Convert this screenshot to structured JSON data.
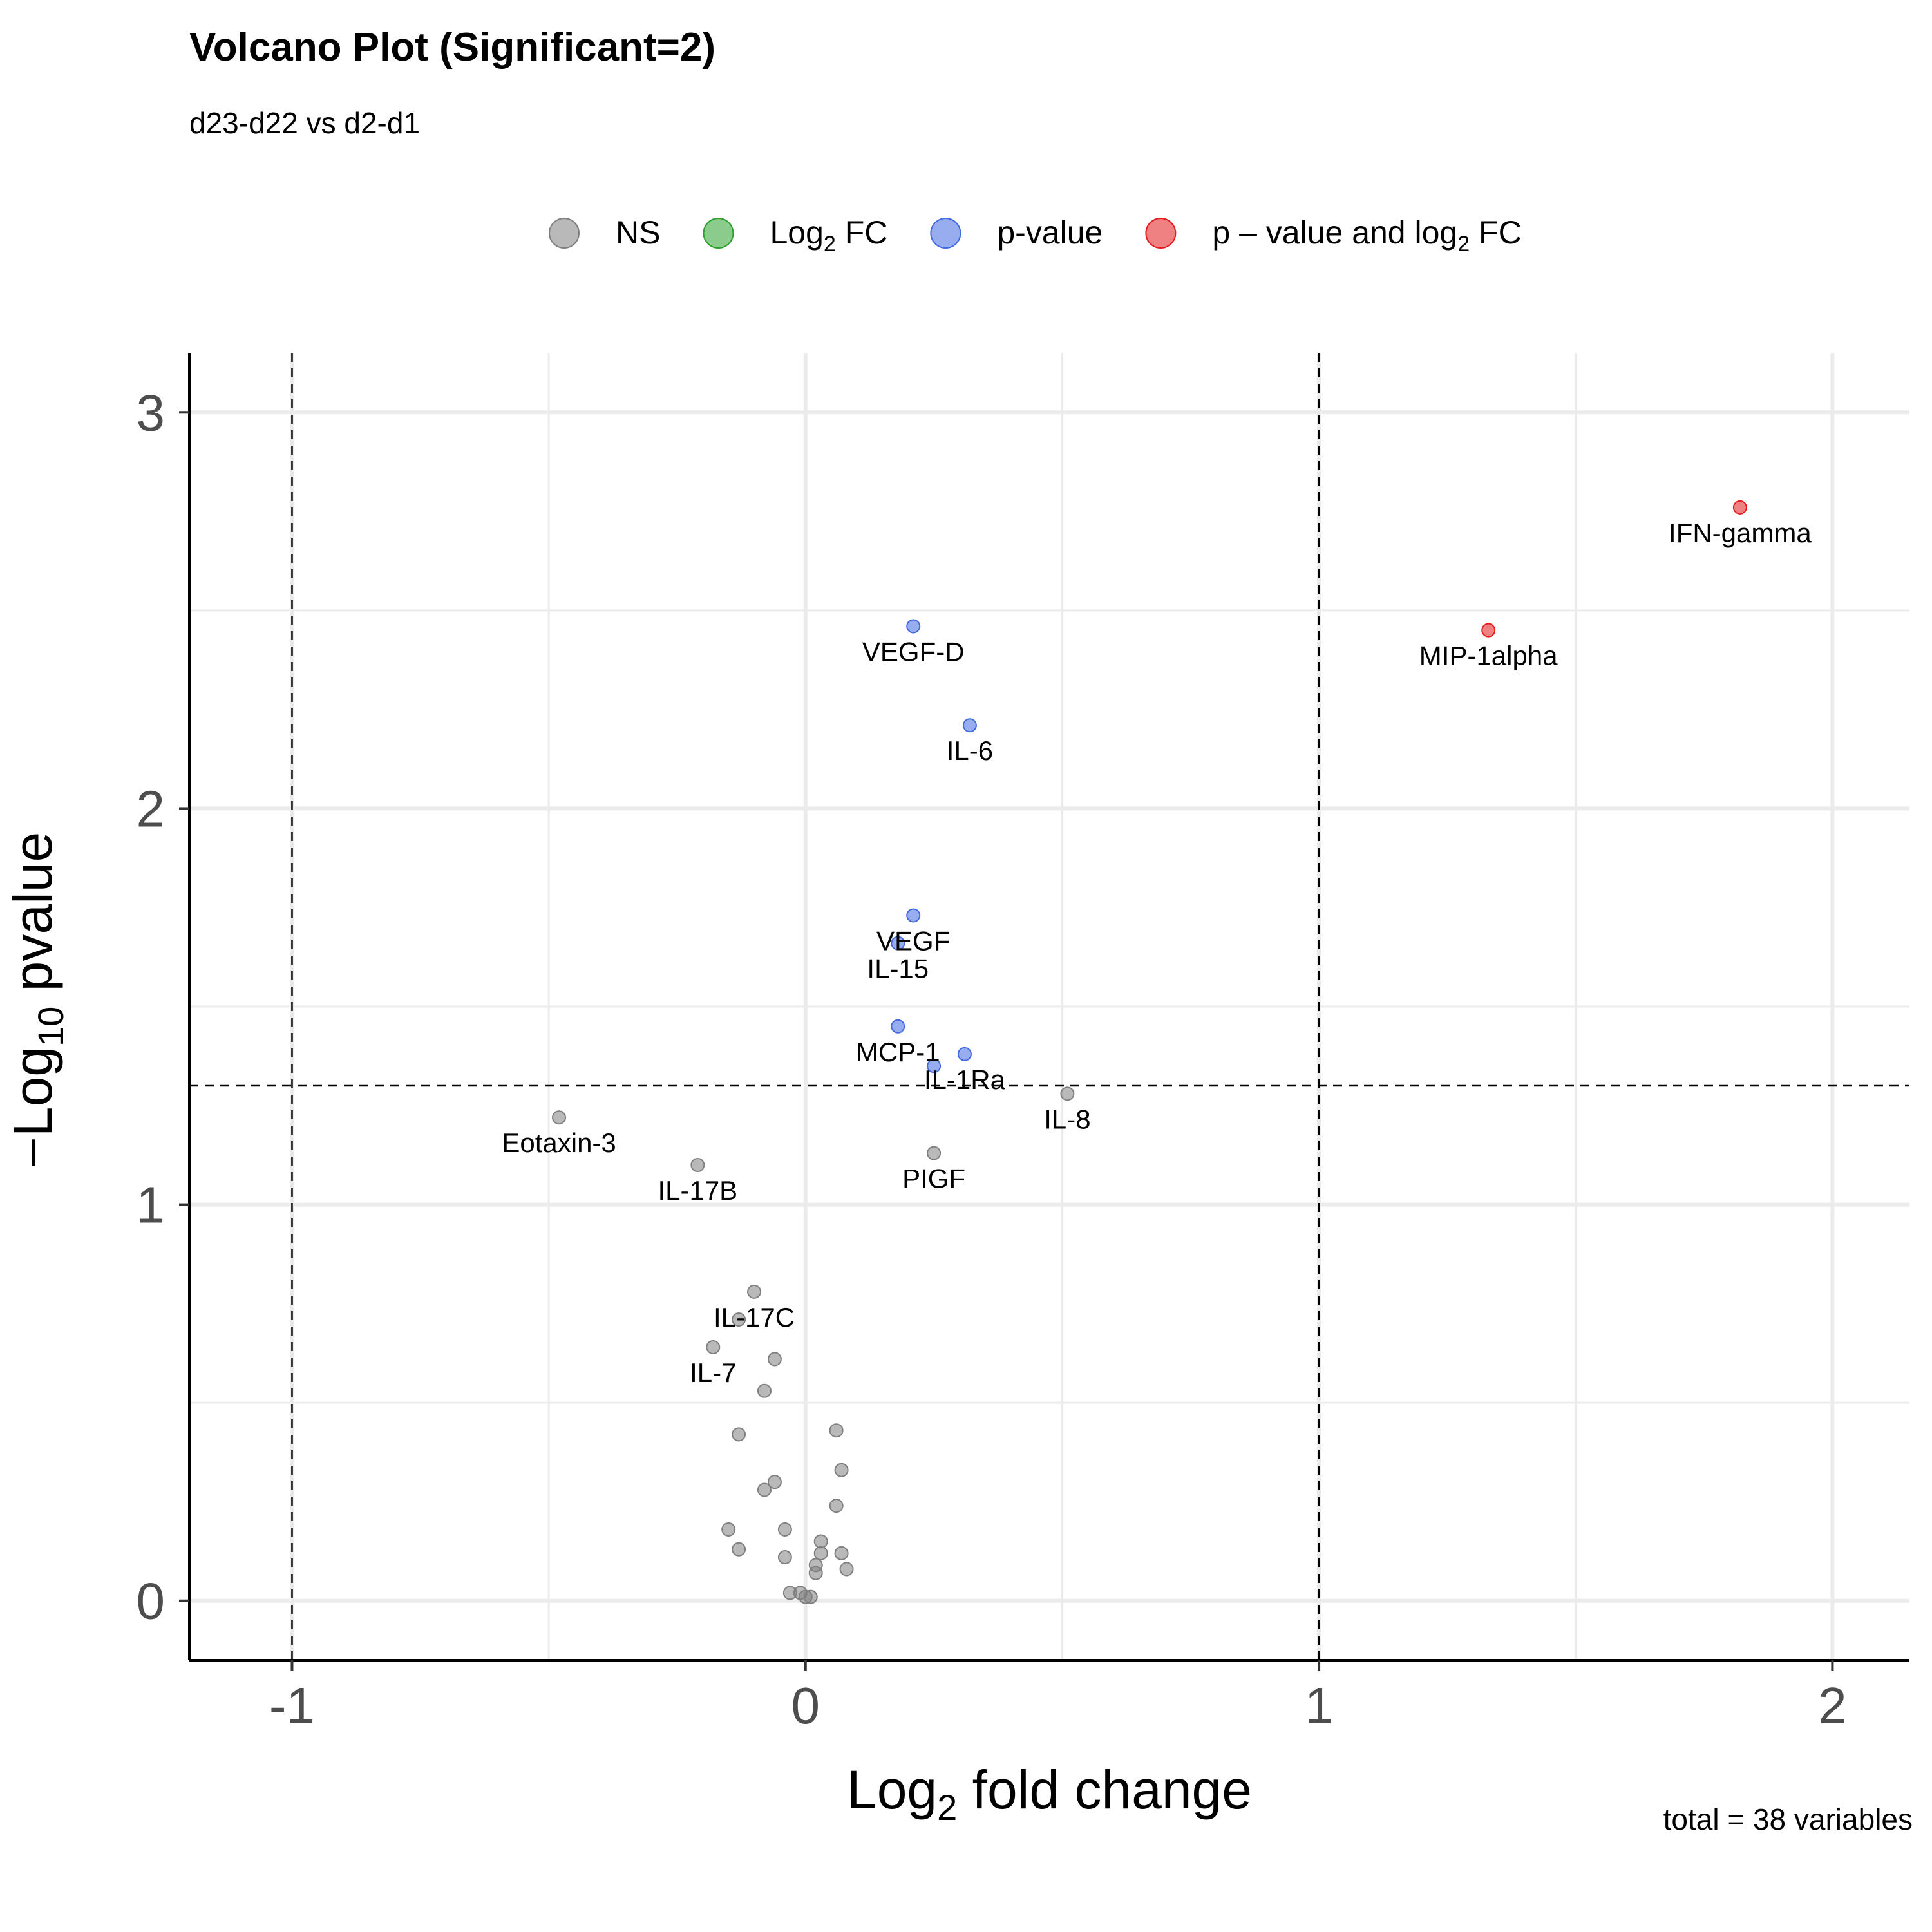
{
  "chart_data": {
    "type": "scatter",
    "title": "Volcano Plot (Significant=2)",
    "subtitle": "d23-d22 vs d2-d1",
    "caption": "total = 38 variables",
    "xlabel": {
      "main": "Log",
      "sub": "2",
      "rest": " fold change"
    },
    "ylabel": {
      "pre": "−Log",
      "sub": "10",
      "rest": " pvalue"
    },
    "xlim": [
      -1.2,
      2.15
    ],
    "ylim": [
      -0.15,
      3.15
    ],
    "x_ticks": [
      {
        "value": -1,
        "label": "-1"
      },
      {
        "value": 0,
        "label": "0"
      },
      {
        "value": 1,
        "label": "1"
      },
      {
        "value": 2,
        "label": "2"
      }
    ],
    "y_ticks": [
      {
        "value": 0,
        "label": "0"
      },
      {
        "value": 1,
        "label": "1"
      },
      {
        "value": 2,
        "label": "2"
      },
      {
        "value": 3,
        "label": "3"
      }
    ],
    "minor_x": [
      -0.5,
      0.5,
      1.5
    ],
    "minor_y": [
      0.5,
      1.5,
      2.5
    ],
    "grid": true,
    "cutoffs": {
      "x": [
        -1,
        1
      ],
      "y": 1.3
    },
    "legend": {
      "position": "top",
      "items": [
        {
          "key": "NS",
          "text": "NS",
          "color": "#7f7f7f"
        },
        {
          "key": "FC",
          "text": "Log",
          "sub": "2",
          "rest": " FC",
          "color": "#2ca02c"
        },
        {
          "key": "P",
          "text": "p-value",
          "color": "#4169e1"
        },
        {
          "key": "PFC",
          "text": "p – value and log",
          "sub": "2",
          "rest": " FC",
          "color": "#e41a1c"
        }
      ]
    },
    "points": [
      {
        "label": "IFN-gamma",
        "x": 1.82,
        "y": 2.76,
        "group": "PFC"
      },
      {
        "label": "MIP-1alpha",
        "x": 1.33,
        "y": 2.45,
        "group": "PFC"
      },
      {
        "label": "VEGF-D",
        "x": 0.21,
        "y": 2.46,
        "group": "P"
      },
      {
        "label": "IL-6",
        "x": 0.32,
        "y": 2.21,
        "group": "P"
      },
      {
        "label": "VEGF",
        "x": 0.21,
        "y": 1.73,
        "group": "P"
      },
      {
        "label": "IL-15",
        "x": 0.18,
        "y": 1.66,
        "group": "P"
      },
      {
        "label": "MCP-1",
        "x": 0.18,
        "y": 1.45,
        "group": "P"
      },
      {
        "label": "IL-1Ra",
        "x": 0.31,
        "y": 1.38,
        "group": "P"
      },
      {
        "label": "",
        "x": 0.25,
        "y": 1.35,
        "group": "P"
      },
      {
        "label": "IL-8",
        "x": 0.51,
        "y": 1.28,
        "group": "NS"
      },
      {
        "label": "Eotaxin-3",
        "x": -0.48,
        "y": 1.22,
        "group": "NS"
      },
      {
        "label": "IL-17B",
        "x": -0.21,
        "y": 1.1,
        "group": "NS"
      },
      {
        "label": "PIGF",
        "x": 0.25,
        "y": 1.13,
        "group": "NS"
      },
      {
        "label": "IL-17C",
        "x": -0.1,
        "y": 0.78,
        "group": "NS"
      },
      {
        "label": "",
        "x": -0.13,
        "y": 0.71,
        "group": "NS"
      },
      {
        "label": "IL-7",
        "x": -0.18,
        "y": 0.64,
        "group": "NS"
      },
      {
        "label": "",
        "x": -0.06,
        "y": 0.61,
        "group": "NS"
      },
      {
        "label": "",
        "x": -0.08,
        "y": 0.53,
        "group": "NS"
      },
      {
        "label": "",
        "x": 0.06,
        "y": 0.43,
        "group": "NS"
      },
      {
        "label": "",
        "x": -0.13,
        "y": 0.42,
        "group": "NS"
      },
      {
        "label": "",
        "x": 0.07,
        "y": 0.33,
        "group": "NS"
      },
      {
        "label": "",
        "x": -0.06,
        "y": 0.3,
        "group": "NS"
      },
      {
        "label": "",
        "x": -0.08,
        "y": 0.28,
        "group": "NS"
      },
      {
        "label": "",
        "x": 0.06,
        "y": 0.24,
        "group": "NS"
      },
      {
        "label": "",
        "x": -0.15,
        "y": 0.18,
        "group": "NS"
      },
      {
        "label": "",
        "x": -0.04,
        "y": 0.18,
        "group": "NS"
      },
      {
        "label": "",
        "x": 0.03,
        "y": 0.15,
        "group": "NS"
      },
      {
        "label": "",
        "x": -0.13,
        "y": 0.13,
        "group": "NS"
      },
      {
        "label": "",
        "x": 0.07,
        "y": 0.12,
        "group": "NS"
      },
      {
        "label": "",
        "x": 0.03,
        "y": 0.12,
        "group": "NS"
      },
      {
        "label": "",
        "x": -0.04,
        "y": 0.11,
        "group": "NS"
      },
      {
        "label": "",
        "x": 0.02,
        "y": 0.09,
        "group": "NS"
      },
      {
        "label": "",
        "x": 0.08,
        "y": 0.08,
        "group": "NS"
      },
      {
        "label": "",
        "x": 0.02,
        "y": 0.07,
        "group": "NS"
      },
      {
        "label": "",
        "x": -0.03,
        "y": 0.02,
        "group": "NS"
      },
      {
        "label": "",
        "x": -0.01,
        "y": 0.02,
        "group": "NS"
      },
      {
        "label": "",
        "x": 0.0,
        "y": 0.01,
        "group": "NS"
      },
      {
        "label": "",
        "x": 0.01,
        "y": 0.01,
        "group": "NS"
      }
    ]
  }
}
